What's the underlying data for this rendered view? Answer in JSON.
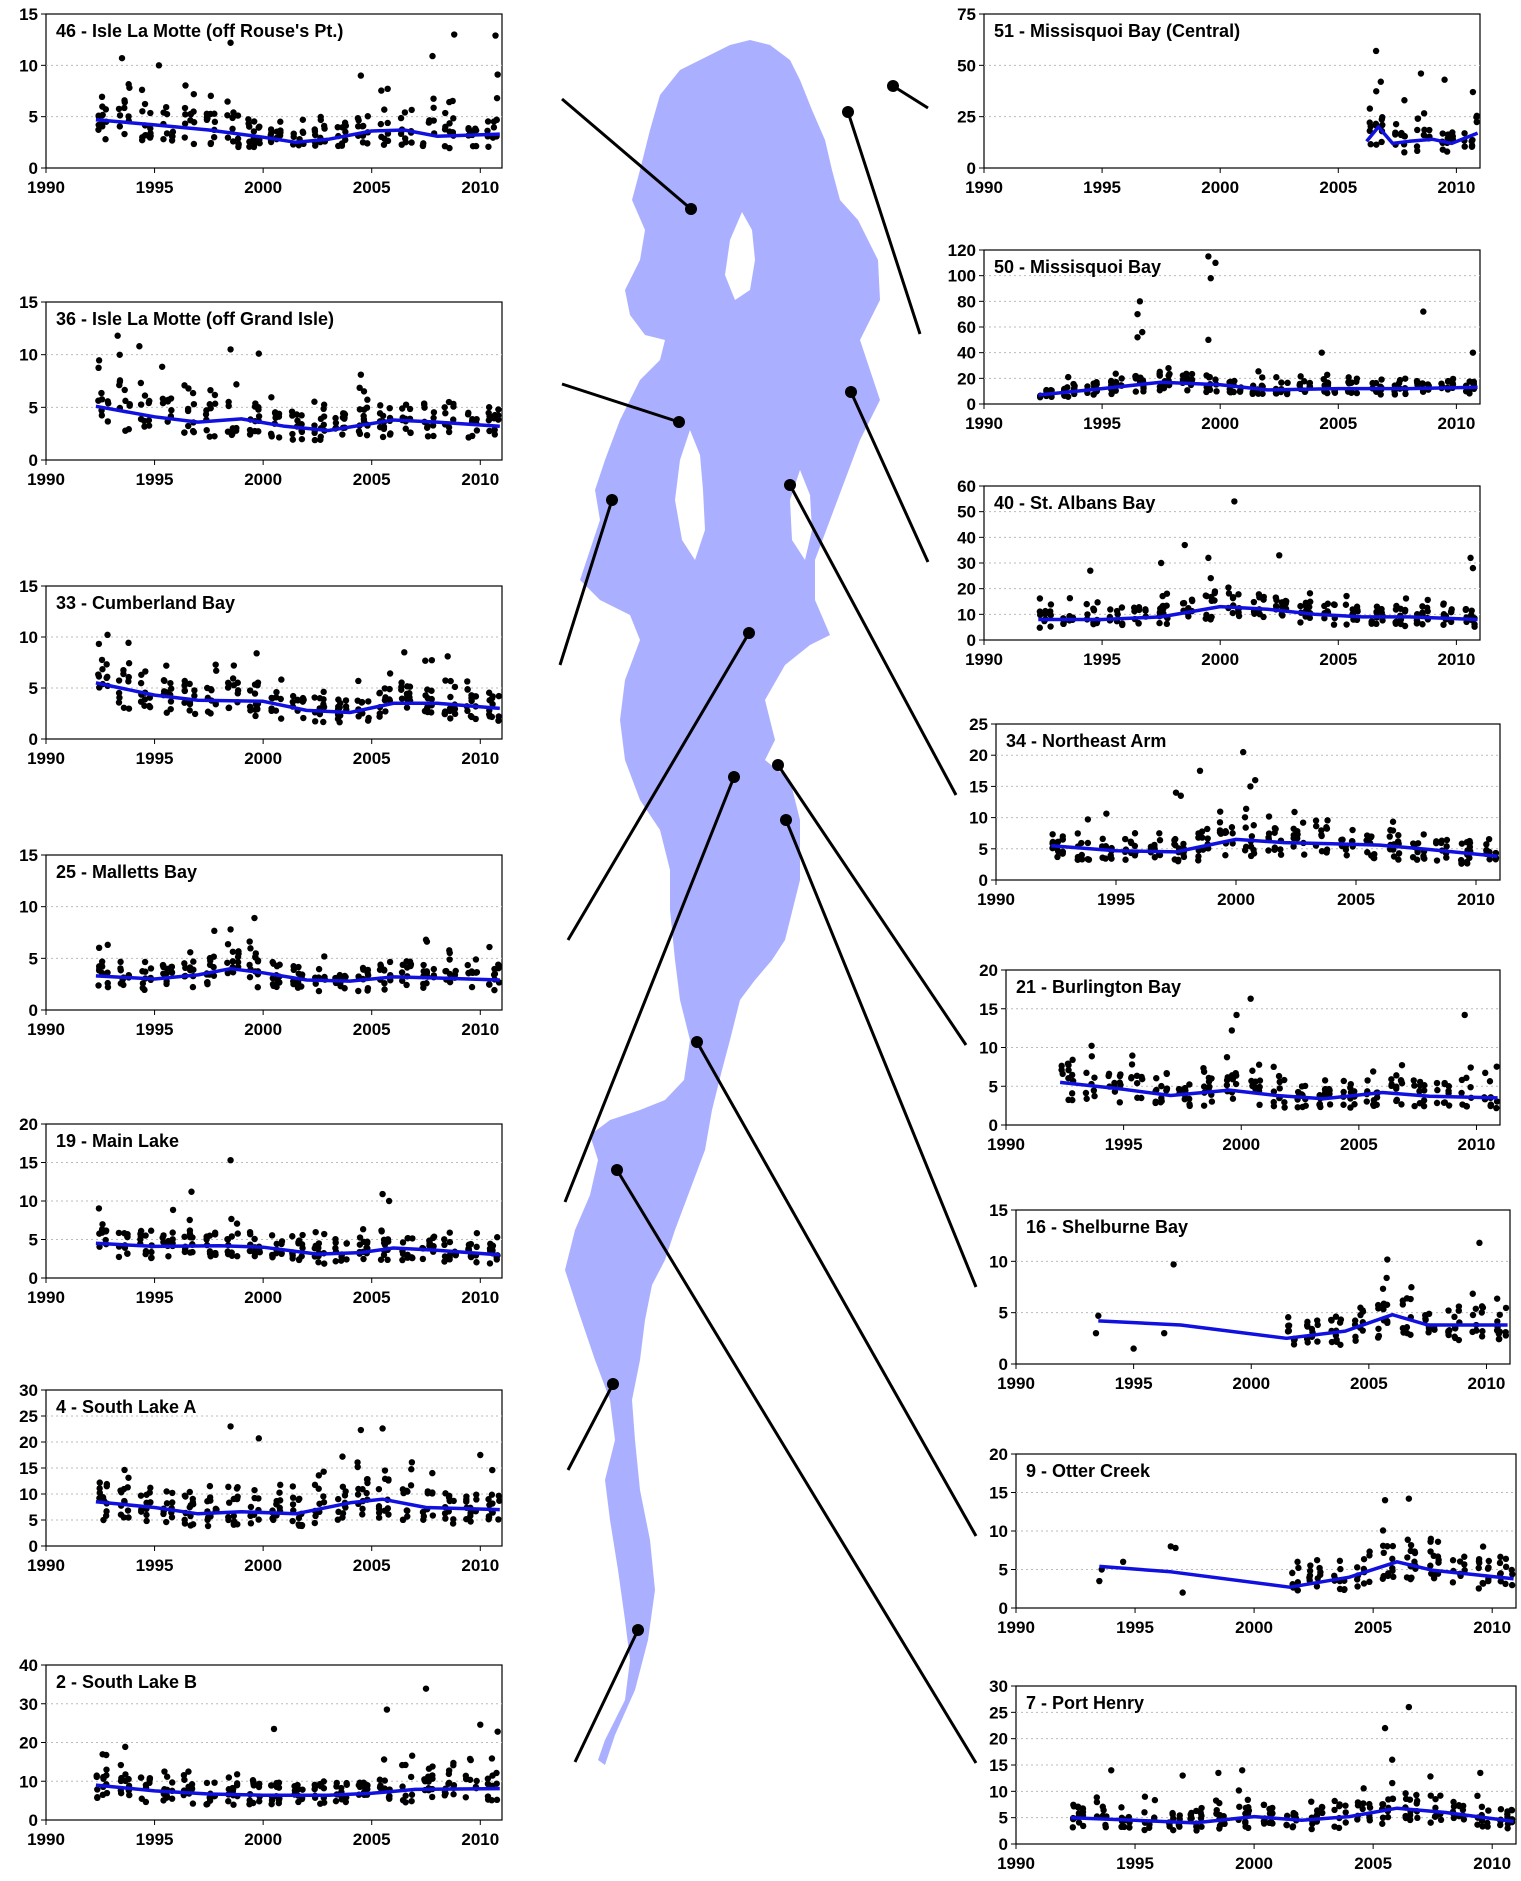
{
  "figure": {
    "lake_fill": "#aab0ff",
    "trend_color": "#1010e0",
    "point_color": "#000000",
    "connector_color": "#000000"
  },
  "chart_data": [
    {
      "id": "46",
      "type": "scatter",
      "title": "46 - Isle La Motte (off Rouse's Pt.)",
      "xlim": [
        1990,
        2011
      ],
      "ylim": [
        0,
        15
      ],
      "yticks": [
        0,
        5,
        10,
        15
      ],
      "xticks": [
        1990,
        1995,
        2000,
        2005,
        2010
      ],
      "x_range": [
        1992.3,
        2010.9
      ],
      "trend": {
        "x": [
          1992.3,
          1995,
          1997.5,
          2000,
          2001.5,
          2003,
          2005,
          2006.5,
          2008,
          2010.9
        ],
        "y": [
          4.7,
          4.2,
          3.7,
          3,
          2.5,
          2.8,
          3.6,
          3.7,
          3.1,
          3.3
        ]
      },
      "outliers": [
        [
          1993.5,
          10.7
        ],
        [
          1995.2,
          10
        ],
        [
          1998.5,
          12.2
        ],
        [
          2004.5,
          9
        ],
        [
          2007.8,
          10.9
        ],
        [
          2008.8,
          13
        ],
        [
          2010.7,
          12.9
        ],
        [
          2010.8,
          9.1
        ]
      ]
    },
    {
      "id": "36",
      "type": "scatter",
      "title": "36 - Isle La Motte (off Grand Isle)",
      "xlim": [
        1990,
        2011
      ],
      "ylim": [
        0,
        15
      ],
      "yticks": [
        0,
        5,
        10,
        15
      ],
      "xticks": [
        1990,
        1995,
        2000,
        2005,
        2010
      ],
      "x_range": [
        1992.3,
        2010.9
      ],
      "trend": {
        "x": [
          1992.3,
          1995,
          1997,
          1999,
          2001,
          2003,
          2006,
          2008,
          2010.9
        ],
        "y": [
          5.1,
          4.1,
          3.6,
          3.9,
          3.2,
          2.8,
          3.8,
          3.6,
          3.2
        ]
      },
      "outliers": [
        [
          1993.3,
          11.8
        ],
        [
          1994.3,
          10.8
        ],
        [
          1998.5,
          10.5
        ],
        [
          1999.8,
          10.1
        ],
        [
          2004.5,
          8.1
        ]
      ]
    },
    {
      "id": "33",
      "type": "scatter",
      "title": "33 - Cumberland Bay",
      "xlim": [
        1990,
        2011
      ],
      "ylim": [
        0,
        15
      ],
      "yticks": [
        0,
        5,
        10,
        15
      ],
      "xticks": [
        1990,
        1995,
        2000,
        2005,
        2010
      ],
      "x_range": [
        1992.3,
        2010.9
      ],
      "trend": {
        "x": [
          1992.3,
          1995,
          1997,
          2000,
          2002,
          2004,
          2006,
          2008,
          2010.9
        ],
        "y": [
          5.5,
          4.3,
          3.8,
          3.7,
          2.8,
          2.6,
          3.5,
          3.5,
          3
        ]
      },
      "outliers": [
        [
          1999.7,
          8.4
        ],
        [
          2006.5,
          8.5
        ],
        [
          2008.5,
          8.1
        ]
      ]
    },
    {
      "id": "25",
      "type": "scatter",
      "title": "25 - Malletts Bay",
      "xlim": [
        1990,
        2011
      ],
      "ylim": [
        0,
        15
      ],
      "yticks": [
        0,
        5,
        10,
        15
      ],
      "xticks": [
        1990,
        1995,
        2000,
        2005,
        2010
      ],
      "x_range": [
        1992.3,
        2010.9
      ],
      "trend": {
        "x": [
          1992.3,
          1995,
          1997,
          1998.5,
          2000,
          2002,
          2004,
          2006,
          2008,
          2010.9
        ],
        "y": [
          3.3,
          3,
          3.4,
          4,
          3.6,
          2.9,
          2.8,
          3.2,
          3.1,
          2.9
        ]
      },
      "outliers": [
        [
          1999.6,
          8.9
        ],
        [
          1998.5,
          7.8
        ],
        [
          2007.5,
          6.8
        ]
      ]
    },
    {
      "id": "19",
      "type": "scatter",
      "title": "19 - Main Lake",
      "xlim": [
        1990,
        2011
      ],
      "ylim": [
        0,
        20
      ],
      "yticks": [
        0,
        5,
        10,
        15,
        20
      ],
      "xticks": [
        1990,
        1995,
        2000,
        2005,
        2010
      ],
      "x_range": [
        1992.3,
        2010.9
      ],
      "trend": {
        "x": [
          1992.3,
          1995,
          1998,
          2000,
          2002.5,
          2004.5,
          2006,
          2008,
          2010.9
        ],
        "y": [
          4.5,
          4.1,
          4.2,
          4,
          3.1,
          3.3,
          3.9,
          3.6,
          3
        ]
      },
      "outliers": [
        [
          1998.5,
          15.3
        ],
        [
          1996.7,
          11.2
        ],
        [
          2005.5,
          10.9
        ],
        [
          2005.8,
          10
        ]
      ]
    },
    {
      "id": "4",
      "type": "scatter",
      "title": "4 - South Lake A",
      "xlim": [
        1990,
        2011
      ],
      "ylim": [
        0,
        30
      ],
      "yticks": [
        0,
        5,
        10,
        15,
        20,
        25,
        30
      ],
      "xticks": [
        1990,
        1995,
        2000,
        2005,
        2010
      ],
      "x_range": [
        1992.3,
        2010.9
      ],
      "trend": {
        "x": [
          1992.3,
          1995,
          1997,
          1999,
          2001.5,
          2004,
          2005.5,
          2007.5,
          2010.9
        ],
        "y": [
          8.5,
          7.4,
          6.2,
          6.6,
          6.2,
          8.3,
          9,
          7.4,
          7
        ]
      },
      "outliers": [
        [
          1998.5,
          23
        ],
        [
          1999.8,
          20.7
        ],
        [
          2004.5,
          22.3
        ],
        [
          2005.5,
          22.6
        ],
        [
          2010,
          17.5
        ]
      ]
    },
    {
      "id": "2",
      "type": "scatter",
      "title": "2 - South Lake B",
      "xlim": [
        1990,
        2011
      ],
      "ylim": [
        0,
        40
      ],
      "yticks": [
        0,
        10,
        20,
        30,
        40
      ],
      "xticks": [
        1990,
        1995,
        2000,
        2005,
        2010
      ],
      "x_range": [
        1992.3,
        2010.9
      ],
      "trend": {
        "x": [
          1992.3,
          1995,
          1997.5,
          2000,
          2003,
          2005,
          2007,
          2010.9
        ],
        "y": [
          9,
          7.5,
          6.7,
          6.4,
          6.4,
          6.9,
          7.9,
          8.1
        ]
      },
      "outliers": [
        [
          2005.7,
          28.5
        ],
        [
          2007.5,
          33.9
        ],
        [
          2000.5,
          23.5
        ],
        [
          2010,
          24.6
        ],
        [
          2010.8,
          22.8
        ]
      ]
    },
    {
      "id": "51",
      "type": "scatter",
      "title": "51 - Missisquoi Bay (Central)",
      "xlim": [
        1990,
        2011
      ],
      "ylim": [
        0,
        75
      ],
      "yticks": [
        0,
        25,
        50,
        75
      ],
      "xticks": [
        1990,
        1995,
        2000,
        2005,
        2010
      ],
      "x_range": [
        2006.2,
        2010.9
      ],
      "trend": {
        "x": [
          2006.2,
          2006.7,
          2007.3,
          2008,
          2009,
          2009.8,
          2010.9
        ],
        "y": [
          13,
          20,
          12,
          13,
          14,
          12,
          17
        ]
      },
      "outliers": [
        [
          2006.6,
          57
        ],
        [
          2008.5,
          46
        ],
        [
          2009.5,
          43
        ],
        [
          2010.7,
          37
        ],
        [
          2006.8,
          42
        ],
        [
          2007.8,
          33
        ]
      ]
    },
    {
      "id": "50",
      "type": "scatter",
      "title": "50 - Missisquoi Bay",
      "xlim": [
        1990,
        2011
      ],
      "ylim": [
        0,
        120
      ],
      "yticks": [
        0,
        20,
        40,
        60,
        80,
        100,
        120
      ],
      "xticks": [
        1990,
        1995,
        2000,
        2005,
        2010
      ],
      "x_range": [
        1992.3,
        2010.9
      ],
      "trend": {
        "x": [
          1992.3,
          1995,
          1997.5,
          2000,
          2002,
          2005,
          2008,
          2010.9
        ],
        "y": [
          7,
          12,
          17,
          15,
          11,
          12,
          12,
          13
        ]
      },
      "outliers": [
        [
          1999.5,
          115
        ],
        [
          1999.8,
          110
        ],
        [
          1999.6,
          98
        ],
        [
          1996.6,
          80
        ],
        [
          1996.5,
          70
        ],
        [
          2008.6,
          72
        ],
        [
          1996.7,
          56
        ],
        [
          1996.5,
          52
        ],
        [
          1999.5,
          50
        ],
        [
          2010.7,
          40
        ],
        [
          2004.3,
          40
        ]
      ]
    },
    {
      "id": "40",
      "type": "scatter",
      "title": "40 - St. Albans Bay",
      "xlim": [
        1990,
        2011
      ],
      "ylim": [
        0,
        60
      ],
      "yticks": [
        0,
        10,
        20,
        30,
        40,
        50,
        60
      ],
      "xticks": [
        1990,
        1995,
        2000,
        2005,
        2010
      ],
      "x_range": [
        1992.3,
        2010.9
      ],
      "trend": {
        "x": [
          1992.3,
          1995,
          1997.5,
          2000,
          2002,
          2004,
          2006,
          2008,
          2010.9
        ],
        "y": [
          8,
          8,
          9,
          13,
          12,
          10,
          9,
          9,
          8
        ]
      },
      "outliers": [
        [
          2000.6,
          54
        ],
        [
          1998.5,
          37
        ],
        [
          1999.5,
          32
        ],
        [
          2002.5,
          33
        ],
        [
          2010.6,
          32
        ],
        [
          2010.7,
          28
        ],
        [
          1997.5,
          30
        ],
        [
          1994.5,
          27
        ]
      ]
    },
    {
      "id": "34",
      "type": "scatter",
      "title": "34 - Northeast Arm",
      "xlim": [
        1990,
        2011
      ],
      "ylim": [
        0,
        25
      ],
      "yticks": [
        0,
        5,
        10,
        15,
        20,
        25
      ],
      "xticks": [
        1990,
        1995,
        2000,
        2005,
        2010
      ],
      "x_range": [
        1992.3,
        2010.9
      ],
      "trend": {
        "x": [
          1992.3,
          1995,
          1997.5,
          2000,
          2002,
          2004,
          2006,
          2008,
          2010.9
        ],
        "y": [
          5.5,
          4.7,
          4.5,
          6.5,
          6,
          5.8,
          5.6,
          4.9,
          3.8
        ]
      },
      "outliers": [
        [
          2000.3,
          20.5
        ],
        [
          2000.8,
          16
        ],
        [
          2000.6,
          15
        ],
        [
          1998.5,
          17.5
        ],
        [
          1997.5,
          14
        ],
        [
          1997.7,
          13.5
        ]
      ]
    },
    {
      "id": "21",
      "type": "scatter",
      "title": "21 - Burlington Bay",
      "xlim": [
        1990,
        2011
      ],
      "ylim": [
        0,
        20
      ],
      "yticks": [
        0,
        5,
        10,
        15,
        20
      ],
      "xticks": [
        1990,
        1995,
        2000,
        2005,
        2010
      ],
      "x_range": [
        1992.3,
        2010.9
      ],
      "trend": {
        "x": [
          1992.3,
          1995,
          1997,
          1999.5,
          2001.5,
          2003.5,
          2006,
          2008,
          2010.9
        ],
        "y": [
          5.5,
          4.6,
          3.8,
          4.5,
          3.8,
          3.4,
          4.2,
          3.7,
          3.5
        ]
      },
      "outliers": [
        [
          2000.4,
          16.3
        ],
        [
          1999.8,
          14.2
        ],
        [
          2009.5,
          14.2
        ],
        [
          1999.6,
          12.2
        ]
      ]
    },
    {
      "id": "16",
      "type": "scatter",
      "title": "16 - Shelburne Bay",
      "xlim": [
        1990,
        2011
      ],
      "ylim": [
        0,
        15
      ],
      "yticks": [
        0,
        5,
        10,
        15
      ],
      "xticks": [
        1990,
        1995,
        2000,
        2005,
        2010
      ],
      "x_range": [
        2001.5,
        2010.9
      ],
      "trend": {
        "x": [
          1993.5,
          1997,
          2001.5,
          2004,
          2006,
          2007.5,
          2010.9
        ],
        "y": [
          4.2,
          3.8,
          2.5,
          3.2,
          4.8,
          3.8,
          3.8
        ]
      },
      "outliers": [
        [
          1996.7,
          9.7
        ],
        [
          2009.7,
          11.8
        ],
        [
          1993.5,
          4.7
        ],
        [
          1993.4,
          3
        ],
        [
          1995,
          1.5
        ],
        [
          1996.3,
          3
        ]
      ]
    },
    {
      "id": "9",
      "type": "scatter",
      "title": "9 - Otter Creek",
      "xlim": [
        1990,
        2011
      ],
      "ylim": [
        0,
        20
      ],
      "yticks": [
        0,
        5,
        10,
        15,
        20
      ],
      "xticks": [
        1990,
        1995,
        2000,
        2005,
        2010
      ],
      "x_range": [
        2001.5,
        2010.9
      ],
      "trend": {
        "x": [
          1993.5,
          1996.5,
          2001.5,
          2004,
          2006,
          2007.5,
          2010.9
        ],
        "y": [
          5.4,
          4.7,
          2.7,
          4,
          6,
          4.9,
          3.8
        ]
      },
      "outliers": [
        [
          2005.5,
          14
        ],
        [
          2006.5,
          14.2
        ],
        [
          1996.5,
          8
        ],
        [
          1996.7,
          7.8
        ],
        [
          1994.5,
          6
        ],
        [
          1993.5,
          3.5
        ],
        [
          1993.6,
          5
        ],
        [
          1997,
          2
        ]
      ]
    },
    {
      "id": "7",
      "type": "scatter",
      "title": "7 - Port Henry",
      "xlim": [
        1990,
        2011
      ],
      "ylim": [
        0,
        30
      ],
      "yticks": [
        0,
        5,
        10,
        15,
        20,
        25,
        30
      ],
      "xticks": [
        1990,
        1995,
        2000,
        2005,
        2010
      ],
      "x_range": [
        1992.3,
        2010.9
      ],
      "trend": {
        "x": [
          1992.3,
          1995,
          1997.5,
          2000,
          2002,
          2004,
          2006,
          2008,
          2010.9
        ],
        "y": [
          5,
          4.5,
          4,
          5.2,
          4.5,
          5.2,
          6.8,
          6,
          4.3
        ]
      },
      "outliers": [
        [
          2006.5,
          26
        ],
        [
          2005.5,
          22
        ],
        [
          2005.8,
          16
        ],
        [
          2009.5,
          13.5
        ],
        [
          1999.5,
          14
        ],
        [
          1998.5,
          13.5
        ],
        [
          1994,
          14
        ],
        [
          1997,
          13
        ]
      ]
    }
  ]
}
